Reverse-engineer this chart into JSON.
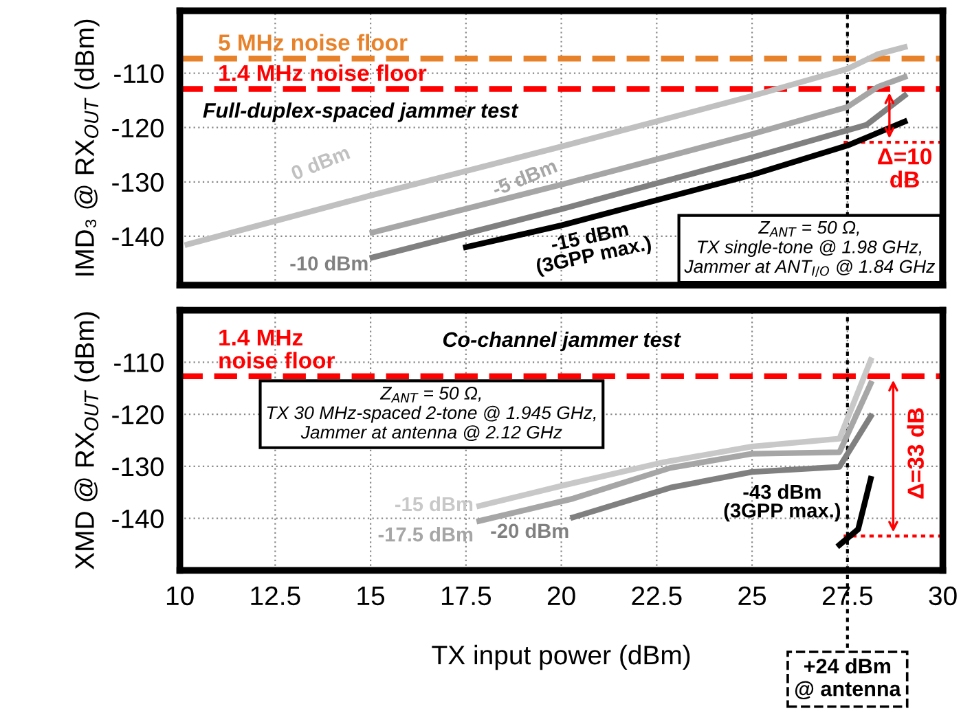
{
  "chart_data": [
    {
      "type": "line",
      "ylabel": "IMD₃ @ RX$_{OUT}$ (dBm)",
      "xlim": [
        10,
        30
      ],
      "ylim": [
        -149,
        -98.5
      ],
      "xticks": [
        10,
        12.5,
        15,
        17.5,
        20,
        22.5,
        25,
        27.5,
        30
      ],
      "yticks": [
        -140,
        -130,
        -120,
        -110
      ],
      "tick_labels": "y",
      "grid": true,
      "legend": false,
      "line_style": "solid",
      "marker": "none",
      "series": [
        {
          "name": "0 dBm",
          "color": "#c0c0c0",
          "x": [
            10.2,
            15,
            20,
            25,
            27.5,
            28.3,
            29
          ],
          "values": [
            -141.5,
            -132.5,
            -123.5,
            -114.2,
            -109.2,
            -106.5,
            -105.2
          ]
        },
        {
          "name": "-5 dBm",
          "color": "#a6a6a6",
          "x": [
            15.05,
            20,
            25,
            27.5,
            28.3,
            29
          ],
          "values": [
            -139.3,
            -130.5,
            -121.2,
            -116.2,
            -112.5,
            -110.7
          ]
        },
        {
          "name": "-10 dBm",
          "color": "#808080",
          "x": [
            15.05,
            20,
            25,
            28,
            29
          ],
          "values": [
            -143.9,
            -135,
            -125.5,
            -119.5,
            -114.1
          ]
        },
        {
          "name": "-15 dBm\n(3GPP max.)",
          "color": "#000000",
          "x": [
            17.5,
            20,
            25,
            27.5,
            29
          ],
          "values": [
            -142,
            -138,
            -128.7,
            -123.3,
            -118.9
          ]
        }
      ],
      "ref_lines": [
        {
          "axis": "y",
          "value": -107.3,
          "label": "5 MHz noise floor",
          "color": "#e8822a",
          "line_style": "dashed"
        },
        {
          "axis": "y",
          "value": -112.9,
          "label": "1.4 MHz noise floor",
          "color": "#ff0000",
          "line_style": "dashed"
        },
        {
          "axis": "y",
          "value": -122.7,
          "color": "#ff0000",
          "line_style": "dotted"
        },
        {
          "axis": "x",
          "value": 27.5,
          "label": null,
          "color": "#000000",
          "line_style": "dotted"
        }
      ],
      "annotations": [
        "Full-duplex-spaced jammer test",
        "Z$_{ANT}$ = 50 Ω,\nTX single-tone @ 1.98 GHz,\nJammer at ANT$_{I/O}$ @ 1.84 GHz",
        "Δ=10\ndB"
      ]
    },
    {
      "type": "line",
      "ylabel": "XMD @ RX$_{OUT}$ (dBm)",
      "xlabel": "TX input power (dBm)",
      "xlim": [
        10,
        30
      ],
      "ylim": [
        -150,
        -100
      ],
      "xticks": [
        10,
        12.5,
        15,
        17.5,
        20,
        22.5,
        25,
        27.5,
        30
      ],
      "yticks": [
        -140,
        -130,
        -120,
        -110
      ],
      "grid": true,
      "legend": false,
      "line_style": "solid",
      "marker": "none",
      "series": [
        {
          "name": "-15 dBm",
          "color": "#c8c8c8",
          "x": [
            17.85,
            20.15,
            22.69,
            24.99,
            27.29,
            28.11
          ],
          "values": [
            -137.6,
            -133.5,
            -129.2,
            -126.2,
            -124.7,
            -109.6
          ]
        },
        {
          "name": "-17.5 dBm",
          "color": "#a6a6a6",
          "x": [
            17.85,
            20.31,
            22.86,
            24.99,
            27.29,
            28.11
          ],
          "values": [
            -140.5,
            -136.2,
            -130.3,
            -127.6,
            -127.3,
            -114.1
          ]
        },
        {
          "name": "-20 dBm",
          "color": "#808080",
          "x": [
            20.31,
            22.86,
            24.99,
            27.29,
            28.11
          ],
          "values": [
            -139.8,
            -134.1,
            -131.1,
            -130.1,
            -120.4
          ]
        },
        {
          "name": "-43 dBm\n(3GPP max.)",
          "color": "#000000",
          "x": [
            27.29,
            27.78,
            28.11
          ],
          "values": [
            -145.1,
            -142.1,
            -132.4
          ]
        }
      ],
      "ref_lines": [
        {
          "axis": "y",
          "value": -112.7,
          "label": "1.4 MHz\nnoise floor",
          "color": "#ff0000",
          "line_style": "dashed"
        },
        {
          "axis": "y",
          "value": -143.4,
          "color": "#ff0000",
          "line_style": "dotted"
        },
        {
          "axis": "x",
          "value": 27.5,
          "label": "+24 dBm\n@ antenna",
          "color": "#000000",
          "line_style": "dotted"
        }
      ],
      "annotations": [
        "Co-channel jammer test",
        "Z$_{ANT}$ = 50 Ω,\nTX 30 MHz-spaced 2-tone @ 1.945 GHz,\nJammer at antenna @ 2.12 GHz",
        "Δ=33 dB"
      ]
    }
  ]
}
